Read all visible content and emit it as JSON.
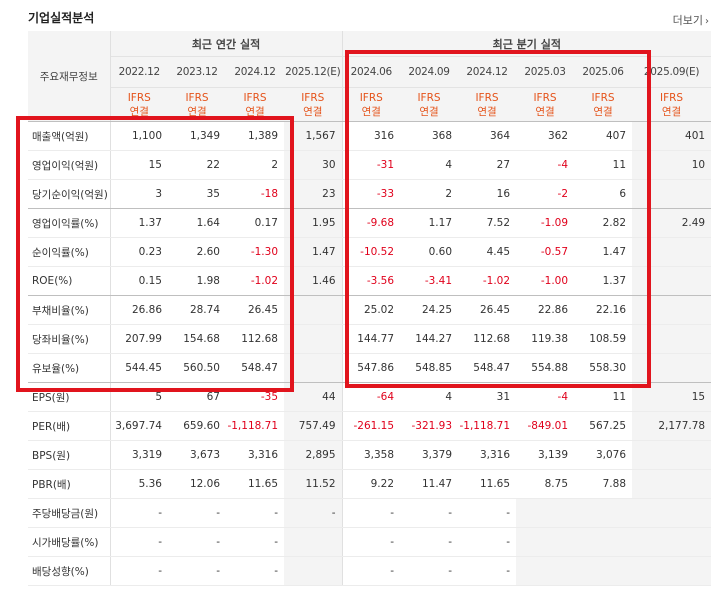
{
  "title": "기업실적분석",
  "more_label": "더보기",
  "header": {
    "label_col": "주요재무정보",
    "annual_group": "최근 연간 실적",
    "quarter_group": "최근 분기 실적",
    "periods": [
      "2022.12",
      "2023.12",
      "2024.12",
      "2025.12(E)",
      "2024.06",
      "2024.09",
      "2024.12",
      "2025.03",
      "2025.06",
      "2025.09(E)"
    ],
    "basis_top": "IFRS",
    "basis_bottom": "연결"
  },
  "rows": [
    {
      "label": "매출액(억원)",
      "values": [
        "1,100",
        "1,349",
        "1,389",
        "1,567",
        "316",
        "368",
        "364",
        "362",
        "407",
        "401"
      ]
    },
    {
      "label": "영업이익(억원)",
      "values": [
        "15",
        "22",
        "2",
        "30",
        "-31",
        "4",
        "27",
        "-4",
        "11",
        "10"
      ]
    },
    {
      "label": "당기순이익(억원)",
      "values": [
        "3",
        "35",
        "-18",
        "23",
        "-33",
        "2",
        "16",
        "-2",
        "6",
        ""
      ]
    },
    {
      "label": "영업이익률(%)",
      "values": [
        "1.37",
        "1.64",
        "0.17",
        "1.95",
        "-9.68",
        "1.17",
        "7.52",
        "-1.09",
        "2.82",
        "2.49"
      ]
    },
    {
      "label": "순이익률(%)",
      "values": [
        "0.23",
        "2.60",
        "-1.30",
        "1.47",
        "-10.52",
        "0.60",
        "4.45",
        "-0.57",
        "1.47",
        ""
      ]
    },
    {
      "label": "ROE(%)",
      "values": [
        "0.15",
        "1.98",
        "-1.02",
        "1.46",
        "-3.56",
        "-3.41",
        "-1.02",
        "-1.00",
        "1.37",
        ""
      ]
    },
    {
      "label": "부채비율(%)",
      "values": [
        "26.86",
        "28.74",
        "26.45",
        "",
        "25.02",
        "24.25",
        "26.45",
        "22.86",
        "22.16",
        ""
      ]
    },
    {
      "label": "당좌비율(%)",
      "values": [
        "207.99",
        "154.68",
        "112.68",
        "",
        "144.77",
        "144.27",
        "112.68",
        "119.38",
        "108.59",
        ""
      ]
    },
    {
      "label": "유보율(%)",
      "values": [
        "544.45",
        "560.50",
        "548.47",
        "",
        "547.86",
        "548.85",
        "548.47",
        "554.88",
        "558.30",
        ""
      ]
    },
    {
      "label": "EPS(원)",
      "values": [
        "5",
        "67",
        "-35",
        "44",
        "-64",
        "4",
        "31",
        "-4",
        "11",
        "15"
      ]
    },
    {
      "label": "PER(배)",
      "values": [
        "3,697.74",
        "659.60",
        "-1,118.71",
        "757.49",
        "-261.15",
        "-321.93",
        "-1,118.71",
        "-849.01",
        "567.25",
        "2,177.78"
      ]
    },
    {
      "label": "BPS(원)",
      "values": [
        "3,319",
        "3,673",
        "3,316",
        "2,895",
        "3,358",
        "3,379",
        "3,316",
        "3,139",
        "3,076",
        ""
      ]
    },
    {
      "label": "PBR(배)",
      "values": [
        "5.36",
        "12.06",
        "11.65",
        "11.52",
        "9.22",
        "11.47",
        "11.65",
        "8.75",
        "7.88",
        ""
      ]
    },
    {
      "label": "주당배당금(원)",
      "values": [
        "-",
        "-",
        "-",
        "-",
        "-",
        "-",
        "-",
        "",
        "",
        ""
      ]
    },
    {
      "label": "시가배당률(%)",
      "values": [
        "-",
        "-",
        "-",
        "",
        "-",
        "-",
        "-",
        "",
        "",
        ""
      ]
    },
    {
      "label": "배당성향(%)",
      "values": [
        "-",
        "-",
        "-",
        "",
        "-",
        "-",
        "-",
        "",
        "",
        ""
      ]
    }
  ],
  "colors": {
    "negative": "#e0001b",
    "basis": "#e5531a",
    "highlight_box": "#e1141d"
  }
}
